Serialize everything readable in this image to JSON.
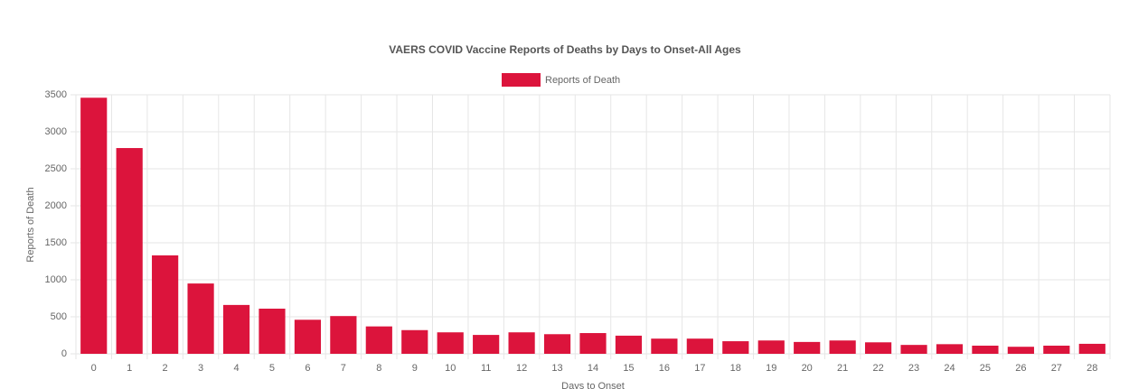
{
  "chart_data": {
    "type": "bar",
    "title": "VAERS COVID Vaccine Reports of Deaths by Days to Onset-All Ages",
    "x_label": "Days to Onset",
    "y_label": "Reports of Death",
    "categories": [
      "0",
      "1",
      "2",
      "3",
      "4",
      "5",
      "6",
      "7",
      "8",
      "9",
      "10",
      "11",
      "12",
      "13",
      "14",
      "15",
      "16",
      "17",
      "18",
      "19",
      "20",
      "21",
      "22",
      "23",
      "24",
      "25",
      "26",
      "27",
      "28"
    ],
    "series": [
      {
        "name": "Reports of Death",
        "color": "#dc143c",
        "values": [
          3460,
          2780,
          1330,
          950,
          660,
          610,
          460,
          510,
          370,
          320,
          290,
          255,
          290,
          265,
          280,
          245,
          205,
          205,
          170,
          180,
          160,
          180,
          155,
          120,
          130,
          110,
          95,
          110,
          135
        ]
      }
    ],
    "ylim": [
      0,
      3500
    ],
    "yticks": [
      0,
      500,
      1000,
      1500,
      2000,
      2500,
      3000,
      3500
    ],
    "grid": true,
    "legend": "top"
  }
}
